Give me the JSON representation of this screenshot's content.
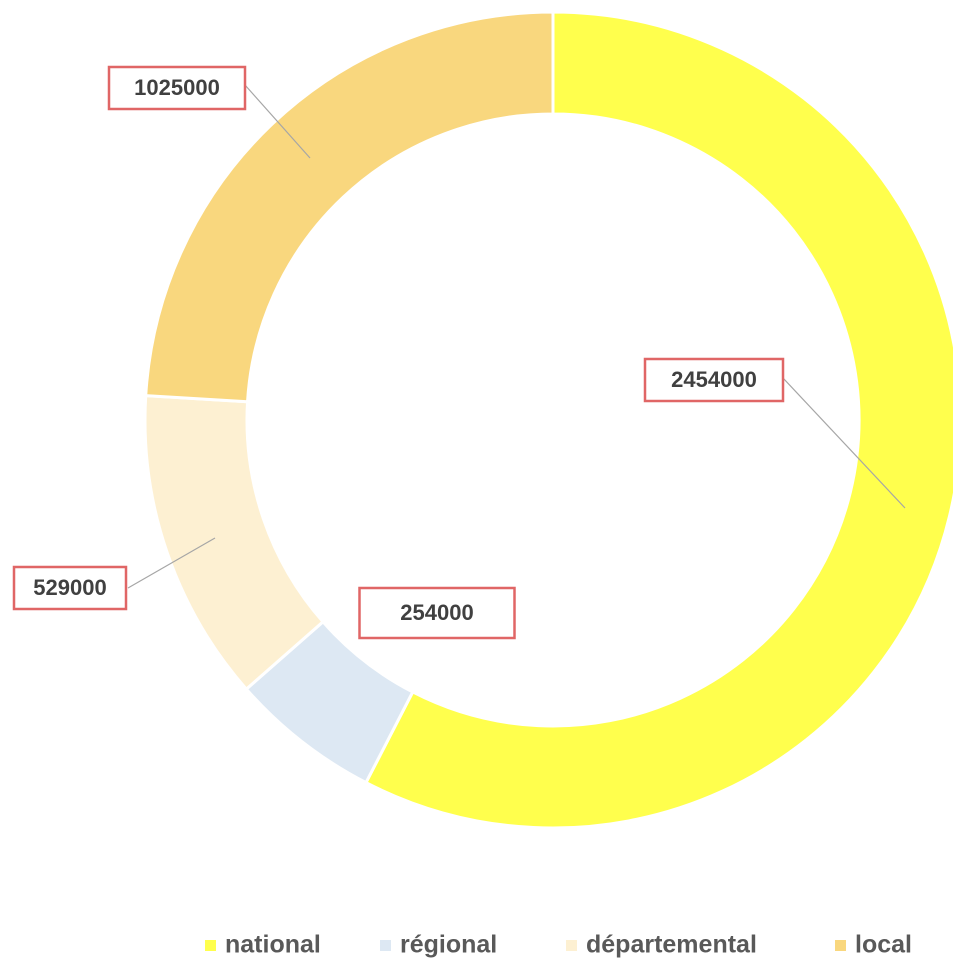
{
  "chart_data": {
    "type": "donut",
    "categories": [
      "national",
      "régional",
      "départemental",
      "local"
    ],
    "values": [
      2454000,
      254000,
      529000,
      1025000
    ],
    "colors": [
      "#ffff4d",
      "#dde8f3",
      "#fdf0d2",
      "#f9d77e"
    ],
    "legend": "bottom"
  }
}
